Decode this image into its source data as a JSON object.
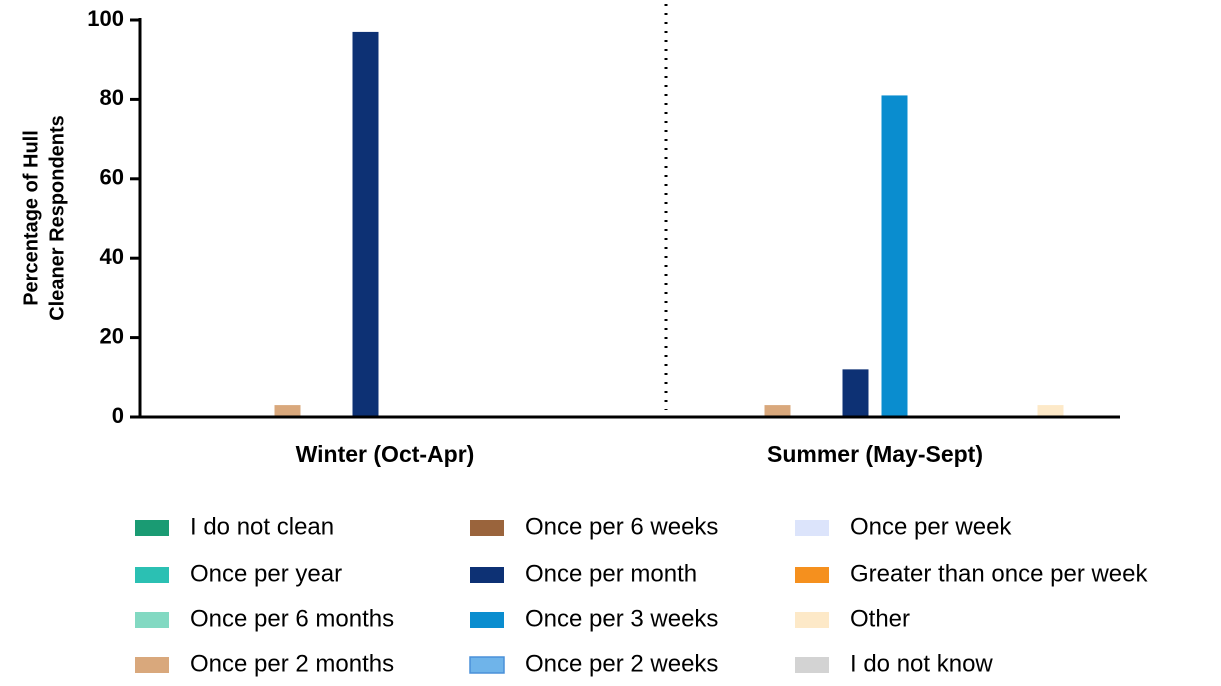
{
  "chart_data": {
    "type": "bar",
    "ylabel": [
      "Percentage of Hull",
      "Cleaner Respondents"
    ],
    "categories": [
      "Winter (Oct-Apr)",
      "Summer (May-Sept)"
    ],
    "series": [
      {
        "name": "I do not clean",
        "color": "#1a9b73",
        "values": [
          0,
          0
        ]
      },
      {
        "name": "Once per year",
        "color": "#2bc0b3",
        "values": [
          0,
          0
        ]
      },
      {
        "name": "Once per 6 months",
        "color": "#82d9c2",
        "values": [
          0,
          0
        ]
      },
      {
        "name": "Once per 2 months",
        "color": "#d9a87c",
        "values": [
          3,
          3
        ]
      },
      {
        "name": "Once per 6 weeks",
        "color": "#9a643c",
        "values": [
          0,
          0
        ]
      },
      {
        "name": "Once per month",
        "color": "#0d3174",
        "values": [
          97,
          12
        ]
      },
      {
        "name": "Once per 3 weeks",
        "color": "#0a8dcf",
        "values": [
          0,
          81
        ]
      },
      {
        "name": "Once per 2 weeks",
        "color": "#6fb4ea",
        "values": [
          0,
          0
        ]
      },
      {
        "name": "Once per week",
        "color": "#dce4fb",
        "values": [
          0,
          0
        ]
      },
      {
        "name": "Greater than once per week",
        "color": "#f5901e",
        "values": [
          0,
          0
        ]
      },
      {
        "name": "Other",
        "color": "#fde9c8",
        "values": [
          0,
          3
        ]
      },
      {
        "name": "I do not know",
        "color": "#d3d3d3",
        "values": [
          0,
          0
        ]
      }
    ],
    "ylim": [
      0,
      100
    ],
    "yticks": [
      0,
      20,
      40,
      60,
      80,
      100
    ]
  }
}
